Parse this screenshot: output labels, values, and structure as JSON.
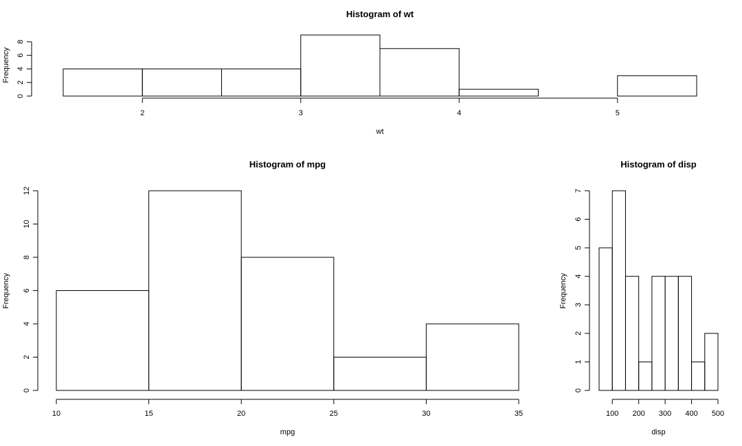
{
  "chart_data": [
    {
      "type": "bar",
      "title": "Histogram of wt",
      "xlabel": "wt",
      "ylabel": "Frequency",
      "bins": [
        [
          1.5,
          2.0
        ],
        [
          2.0,
          2.5
        ],
        [
          2.5,
          3.0
        ],
        [
          3.0,
          3.5
        ],
        [
          3.5,
          4.0
        ],
        [
          4.0,
          4.5
        ],
        [
          4.5,
          5.0
        ],
        [
          5.0,
          5.5
        ]
      ],
      "values": [
        4,
        4,
        4,
        9,
        7,
        1,
        0,
        3
      ],
      "xticks": [
        2,
        3,
        4,
        5
      ],
      "yticks": [
        0,
        2,
        4,
        6,
        8
      ],
      "xlim": [
        1.5,
        5.5
      ],
      "ylim": [
        0,
        9
      ],
      "grid": false
    },
    {
      "type": "bar",
      "title": "Histogram of mpg",
      "xlabel": "mpg",
      "ylabel": "Frequency",
      "bins": [
        [
          10,
          15
        ],
        [
          15,
          20
        ],
        [
          20,
          25
        ],
        [
          25,
          30
        ],
        [
          30,
          35
        ]
      ],
      "values": [
        6,
        12,
        8,
        2,
        4
      ],
      "xticks": [
        10,
        15,
        20,
        25,
        30,
        35
      ],
      "yticks": [
        0,
        2,
        4,
        6,
        8,
        10,
        12
      ],
      "xlim": [
        10,
        35
      ],
      "ylim": [
        0,
        12
      ],
      "grid": false
    },
    {
      "type": "bar",
      "title": "Histogram of disp",
      "xlabel": "disp",
      "ylabel": "Frequency",
      "bins": [
        [
          50,
          100
        ],
        [
          100,
          150
        ],
        [
          150,
          200
        ],
        [
          200,
          250
        ],
        [
          250,
          300
        ],
        [
          300,
          350
        ],
        [
          350,
          400
        ],
        [
          400,
          450
        ],
        [
          450,
          500
        ]
      ],
      "values": [
        5,
        7,
        4,
        1,
        4,
        4,
        4,
        1,
        2
      ],
      "xticks": [
        100,
        200,
        300,
        400,
        500
      ],
      "yticks": [
        0,
        1,
        2,
        3,
        4,
        5,
        6,
        7
      ],
      "xlim": [
        50,
        500
      ],
      "ylim": [
        0,
        7
      ],
      "grid": false
    }
  ]
}
